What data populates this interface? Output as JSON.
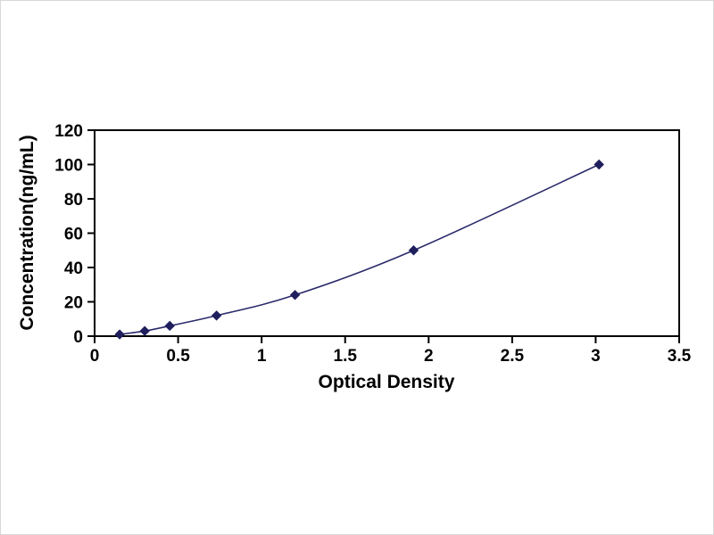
{
  "figure": {
    "xlabel": "Optical Density",
    "ylabel": "Concentration(ng/mL)"
  },
  "chart_data": {
    "type": "line",
    "title": "",
    "xlabel": "Optical Density",
    "ylabel": "Concentration(ng/mL)",
    "x": [
      0.15,
      0.3,
      0.45,
      0.73,
      1.2,
      1.91,
      3.02
    ],
    "y": [
      1,
      3,
      6,
      12,
      24,
      50,
      100
    ],
    "xlim": [
      0,
      3.5
    ],
    "ylim": [
      0,
      120
    ],
    "xticks": [
      0,
      0.5,
      1,
      1.5,
      2,
      2.5,
      3,
      3.5
    ],
    "yticks": [
      0,
      20,
      40,
      60,
      80,
      100,
      120
    ],
    "grid": false,
    "legend": "none",
    "marker": "diamond",
    "line_color": "#2b2b6b",
    "marker_color": "#1f1f5e",
    "frame_color": "#000000",
    "tick_label_color": "#000000"
  }
}
